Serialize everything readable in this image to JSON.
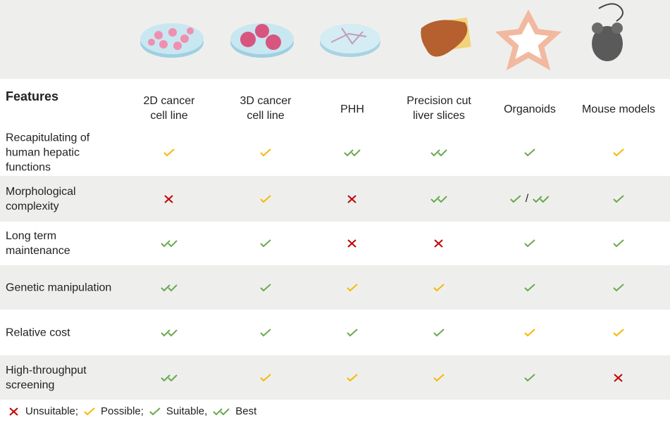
{
  "table": {
    "header": [
      "Features",
      "2D cancer cell line",
      "3D cancer cell line",
      "PHH",
      "Precision cut liver slices",
      "Organoids",
      "Mouse models"
    ],
    "rows": [
      {
        "feature": "Recapitulating of human hepatic functions",
        "cells": [
          [
            "possible"
          ],
          [
            "possible"
          ],
          [
            "best"
          ],
          [
            "best"
          ],
          [
            "suitable"
          ],
          [
            "possible"
          ]
        ]
      },
      {
        "feature": "Morphological complexity",
        "cells": [
          [
            "unsuitable"
          ],
          [
            "possible"
          ],
          [
            "unsuitable"
          ],
          [
            "best"
          ],
          [
            "suitable",
            "/",
            "best"
          ],
          [
            "suitable"
          ]
        ]
      },
      {
        "feature": "Long term maintenance",
        "cells": [
          [
            "best"
          ],
          [
            "suitable"
          ],
          [
            "unsuitable"
          ],
          [
            "unsuitable"
          ],
          [
            "suitable"
          ],
          [
            "suitable"
          ]
        ]
      },
      {
        "feature": "Genetic manipulation",
        "cells": [
          [
            "best"
          ],
          [
            "suitable"
          ],
          [
            "possible"
          ],
          [
            "possible"
          ],
          [
            "suitable"
          ],
          [
            "suitable"
          ]
        ]
      },
      {
        "feature": "Relative cost",
        "cells": [
          [
            "best"
          ],
          [
            "suitable"
          ],
          [
            "suitable"
          ],
          [
            "suitable"
          ],
          [
            "possible"
          ],
          [
            "possible"
          ]
        ]
      },
      {
        "feature": "High-throughput screening",
        "cells": [
          [
            "best"
          ],
          [
            "possible"
          ],
          [
            "possible"
          ],
          [
            "possible"
          ],
          [
            "suitable"
          ],
          [
            "unsuitable"
          ]
        ]
      }
    ]
  },
  "legend": [
    {
      "symbol": "unsuitable",
      "label": "Unsuitable;"
    },
    {
      "symbol": "possible",
      "label": "Possible;"
    },
    {
      "symbol": "suitable",
      "label": "Suitable,"
    },
    {
      "symbol": "best",
      "label": "Best"
    }
  ]
}
